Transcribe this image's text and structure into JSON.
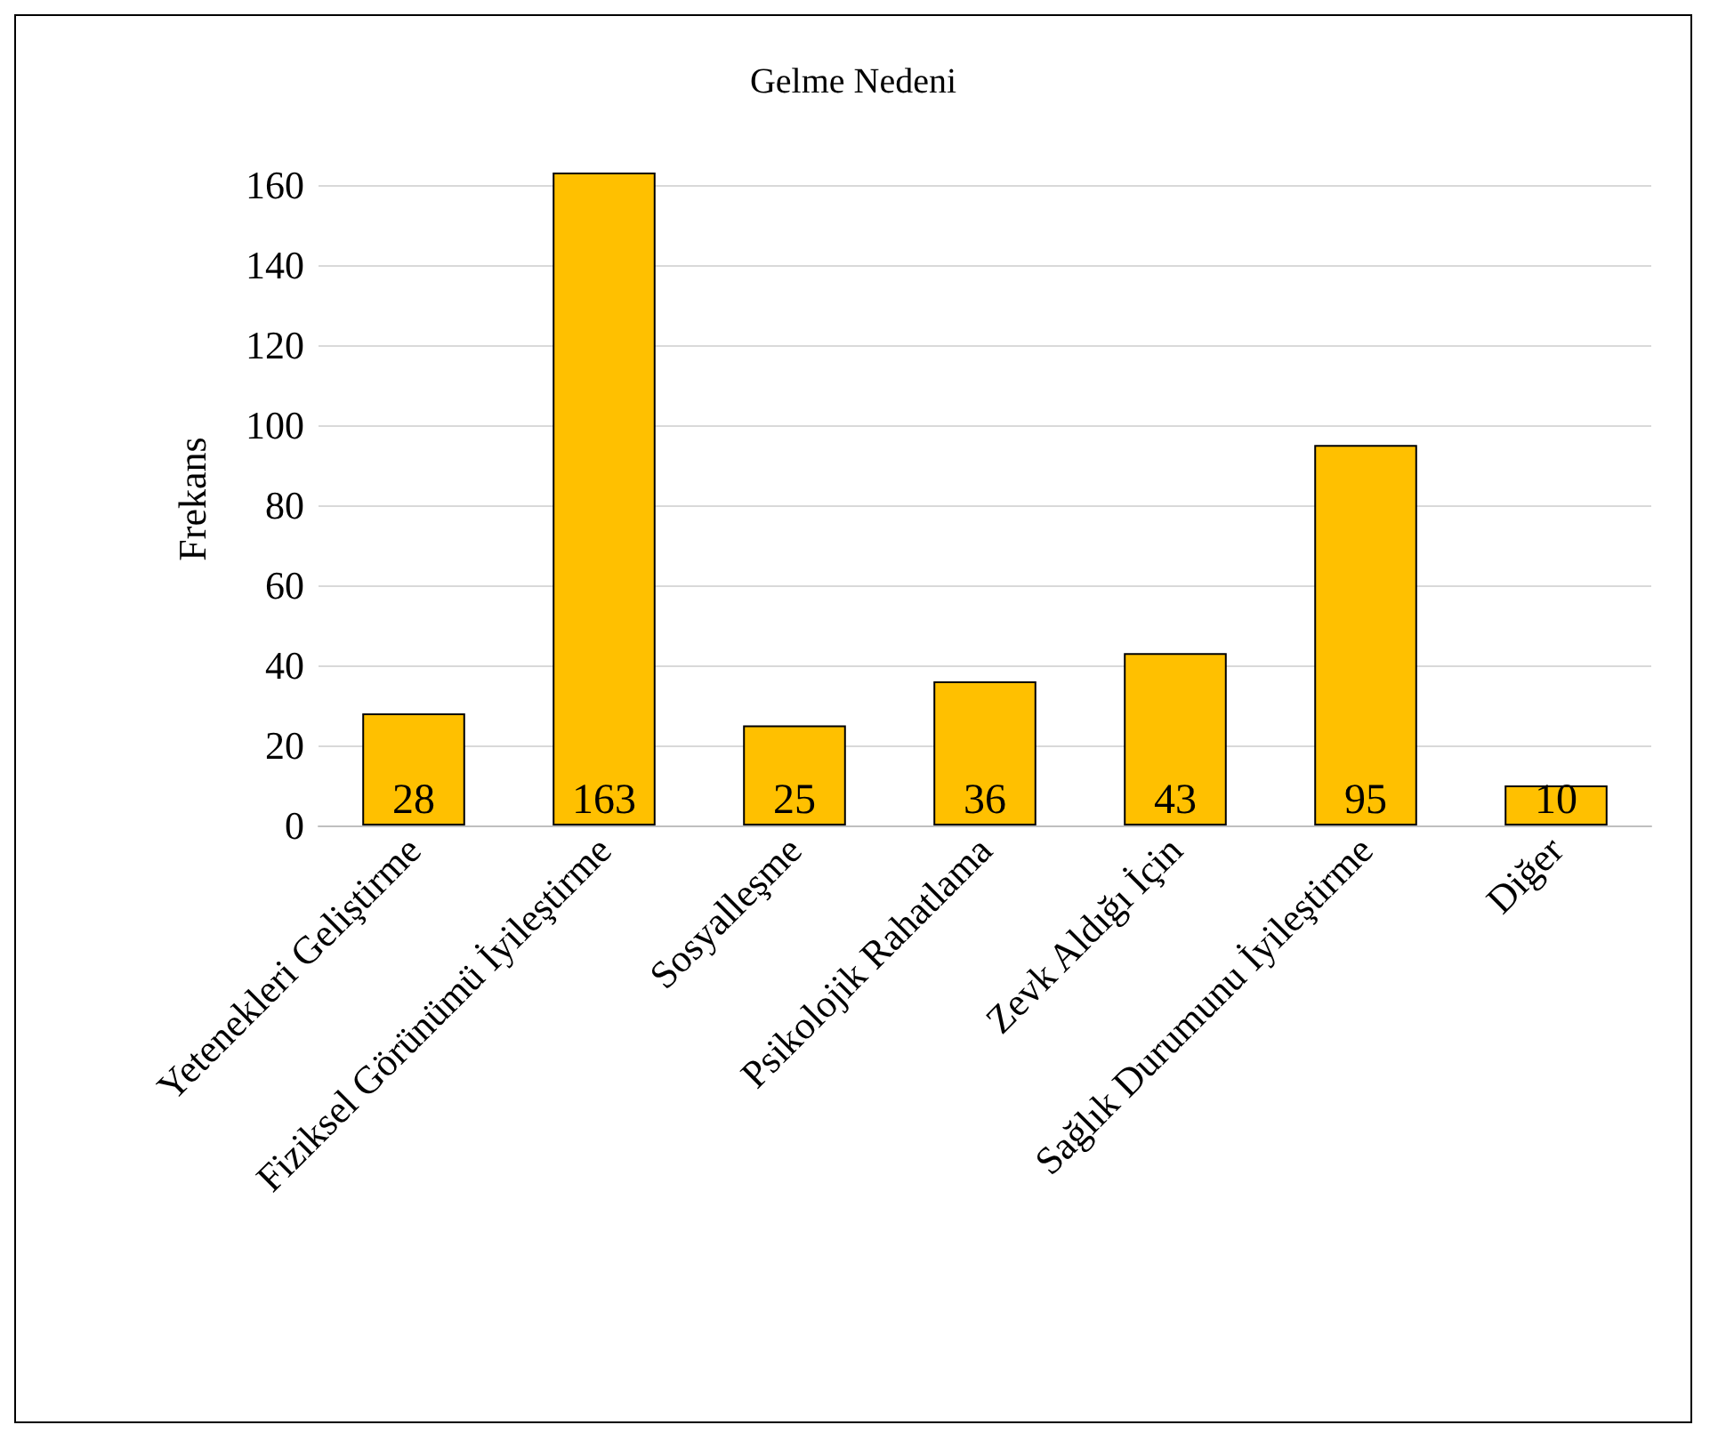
{
  "chart_data": {
    "type": "bar",
    "title": "Gelme Nedeni",
    "ylabel": "Frekans",
    "categories": [
      "Yetenekleri Geliştirme",
      "Fiziksel Görünümü İyileştirme",
      "Sosyalleşme",
      "Psikolojik Rahatlama",
      "Zevk Aldığı İçin",
      "Sağlık Durumunu İyileştirme",
      "Diğer"
    ],
    "values": [
      28,
      163,
      25,
      36,
      43,
      95,
      10
    ],
    "color": "#ffc000",
    "ylim": [
      0,
      163
    ],
    "yticks": [
      0,
      20,
      40,
      60,
      80,
      100,
      120,
      140,
      160
    ],
    "grid": "y",
    "data_labels": true
  }
}
